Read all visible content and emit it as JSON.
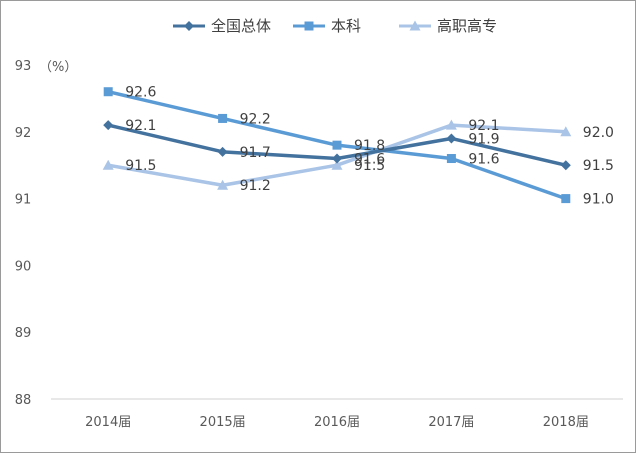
{
  "chart_data": {
    "type": "line",
    "title": "",
    "xlabel": "",
    "ylabel": "",
    "y_unit": "（%）",
    "ylim": [
      88,
      93
    ],
    "y_ticks": [
      88,
      89,
      90,
      91,
      92,
      93
    ],
    "grid": false,
    "legend_position": "top",
    "categories": [
      "2014届",
      "2015届",
      "2016届",
      "2017届",
      "2018届"
    ],
    "series": [
      {
        "name": "全国总体",
        "values": [
          92.1,
          91.7,
          91.6,
          91.9,
          91.5
        ],
        "labels": [
          "92.1",
          "91.7",
          "91.6",
          "91.9",
          "91.5"
        ],
        "color": "#44729e",
        "marker": "diamond"
      },
      {
        "name": "本科",
        "values": [
          92.6,
          92.2,
          91.8,
          91.6,
          91.0
        ],
        "labels": [
          "92.6",
          "92.2",
          "91.8",
          "91.6",
          "91.0"
        ],
        "color": "#5b9bd5",
        "marker": "square"
      },
      {
        "name": "高职高专",
        "values": [
          91.5,
          91.2,
          91.5,
          92.1,
          92.0
        ],
        "labels": [
          "91.5",
          "91.2",
          "91.5",
          "92.1",
          "92.0"
        ],
        "color": "#a9c4e6",
        "marker": "triangle"
      }
    ]
  }
}
